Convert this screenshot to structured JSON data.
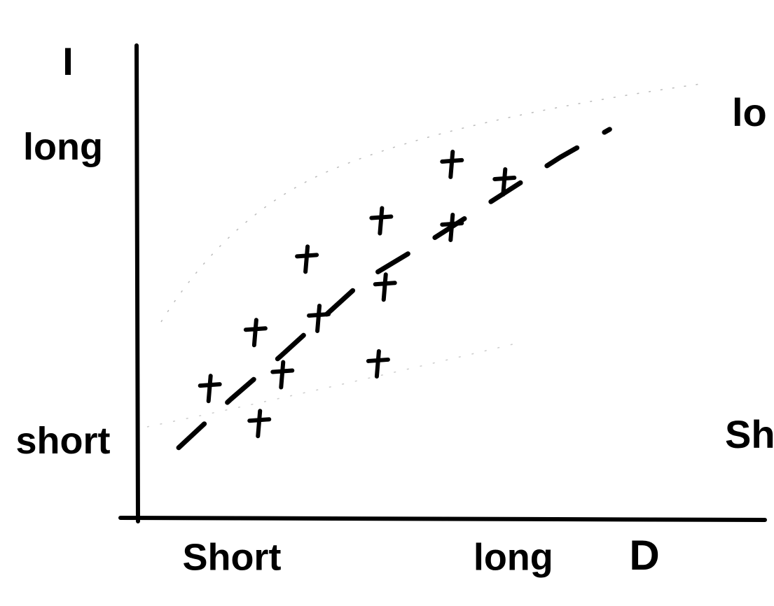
{
  "chart_data": {
    "type": "scatter",
    "x_label": "D",
    "y_label": "I",
    "right_labels": [
      "lo",
      "Sh"
    ],
    "xlim": [
      0,
      100
    ],
    "ylim": [
      0,
      100
    ],
    "xticks": [
      {
        "value": 15,
        "label": "Short"
      },
      {
        "value": 60,
        "label": "long"
      }
    ],
    "yticks": [
      {
        "value": 16,
        "label": "short"
      },
      {
        "value": 78,
        "label": "long"
      }
    ],
    "grid": false,
    "series": [
      {
        "color": "#000000",
        "marker": "plus",
        "x": [
          11.5,
          19.4,
          18.8,
          23.1,
          28.9,
          27.0,
          38.9,
          39.5,
          38.4,
          50.2,
          58.6,
          50.2
        ],
        "values": [
          27.6,
          20.2,
          39.4,
          30.5,
          42.4,
          54.9,
          63.0,
          49.0,
          32.8,
          74.9,
          71.2,
          61.6
        ]
      },
      {
        "color": "#000000",
        "marker": "dashed-line",
        "x": [
          6.5,
          14.9,
          22.7,
          36.2,
          47.4,
          67.5,
          75.4
        ],
        "values": [
          15.1,
          25.4,
          34.3,
          50.5,
          59.4,
          76.4,
          82.3
        ]
      }
    ]
  }
}
